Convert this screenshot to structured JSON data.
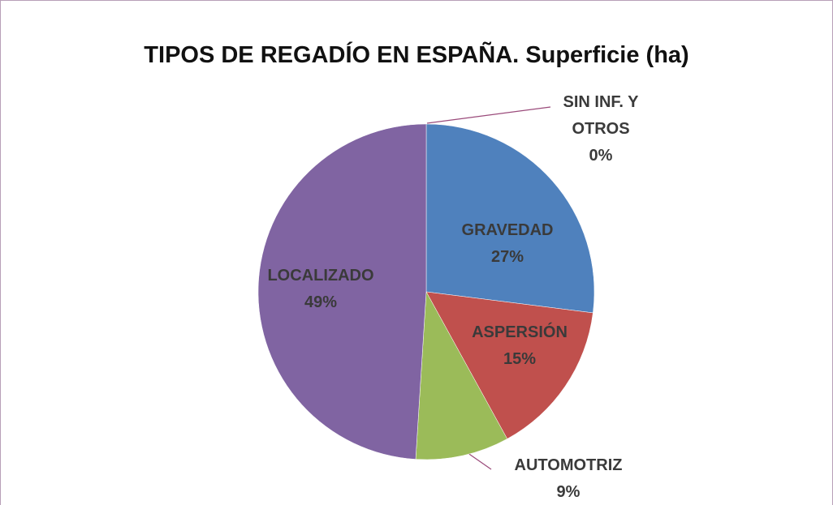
{
  "chart_data": {
    "type": "pie",
    "title": "TIPOS DE REGADÍO EN ESPAÑA. Superficie (ha)",
    "categories": [
      "GRAVEDAD",
      "ASPERSIÓN",
      "AUTOMOTRIZ",
      "LOCALIZADO",
      "SIN INF. Y OTROS"
    ],
    "values": [
      27,
      15,
      9,
      49,
      0
    ],
    "value_labels": [
      "27%",
      "15%",
      "9%",
      "49%",
      "0%"
    ],
    "colors": [
      "#4f81bd",
      "#c0504d",
      "#9bbb59",
      "#8064a2",
      "#4bacc6"
    ]
  }
}
